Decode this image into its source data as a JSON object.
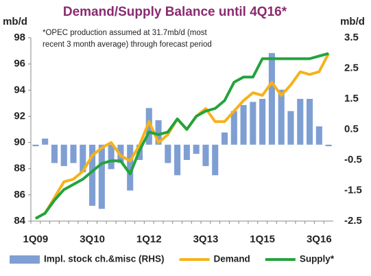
{
  "chart_data": {
    "type": "combo",
    "title": "Demand/Supply Balance until 4Q16*",
    "y_label": "mb/d",
    "y2_label": "mb/d",
    "annotation": "*OPEC production assumed at 31.7mb/d  (most recent 3 month average) through forecast period",
    "categories": [
      "1Q09",
      null,
      null,
      null,
      null,
      null,
      "3Q10",
      null,
      null,
      null,
      null,
      null,
      "1Q12",
      null,
      null,
      null,
      null,
      null,
      "3Q13",
      null,
      null,
      null,
      null,
      null,
      "1Q15",
      null,
      null,
      null,
      null,
      null,
      "3Q16",
      null
    ],
    "series": [
      {
        "name": "Impl. stock ch.&misc (RHS)",
        "type": "bar",
        "axis": "y2",
        "color": "#7f9fd3",
        "values": [
          -0.05,
          0.2,
          -0.6,
          -0.7,
          -0.6,
          -0.9,
          -2.0,
          -2.1,
          -0.8,
          -0.6,
          -1.5,
          -0.5,
          1.2,
          0.8,
          -0.6,
          -1.0,
          -0.5,
          -0.3,
          -0.7,
          -1.0,
          0.4,
          1.1,
          1.3,
          1.4,
          1.5,
          3.0,
          1.8,
          1.1,
          1.5,
          1.5,
          0.6,
          -0.05
        ]
      },
      {
        "name": "Demand",
        "type": "line",
        "color": "#f6b21a",
        "values": [
          84.2,
          84.6,
          85.8,
          87.0,
          87.2,
          87.8,
          89.0,
          89.6,
          90.0,
          89.0,
          88.6,
          89.8,
          91.6,
          90.0,
          90.6,
          91.8,
          91.0,
          92.0,
          92.6,
          91.6,
          91.6,
          92.4,
          93.2,
          93.8,
          93.6,
          94.6,
          93.6,
          94.4,
          95.4,
          95.2,
          95.4,
          96.8
        ]
      },
      {
        "name": "Supply*",
        "type": "line",
        "color": "#22a33c",
        "values": [
          84.2,
          84.6,
          85.6,
          86.4,
          86.8,
          87.2,
          87.8,
          88.4,
          88.6,
          88.6,
          87.6,
          89.4,
          90.8,
          90.6,
          90.8,
          91.8,
          91.0,
          92.0,
          92.4,
          92.6,
          93.2,
          94.6,
          95.0,
          95.0,
          96.4,
          96.4,
          96.4,
          96.4,
          96.4,
          96.4,
          96.6,
          96.8
        ]
      }
    ],
    "ylim": [
      84,
      98
    ],
    "yticks": [
      84,
      86,
      88,
      90,
      92,
      94,
      96,
      98
    ],
    "y2lim": [
      -2.5,
      3.5
    ],
    "y2ticks": [
      -2.5,
      -1.5,
      -0.5,
      0.5,
      1.5,
      2.5,
      3.5
    ],
    "title_color": "#8a2a6f",
    "grid": false,
    "legend": "bottom"
  }
}
